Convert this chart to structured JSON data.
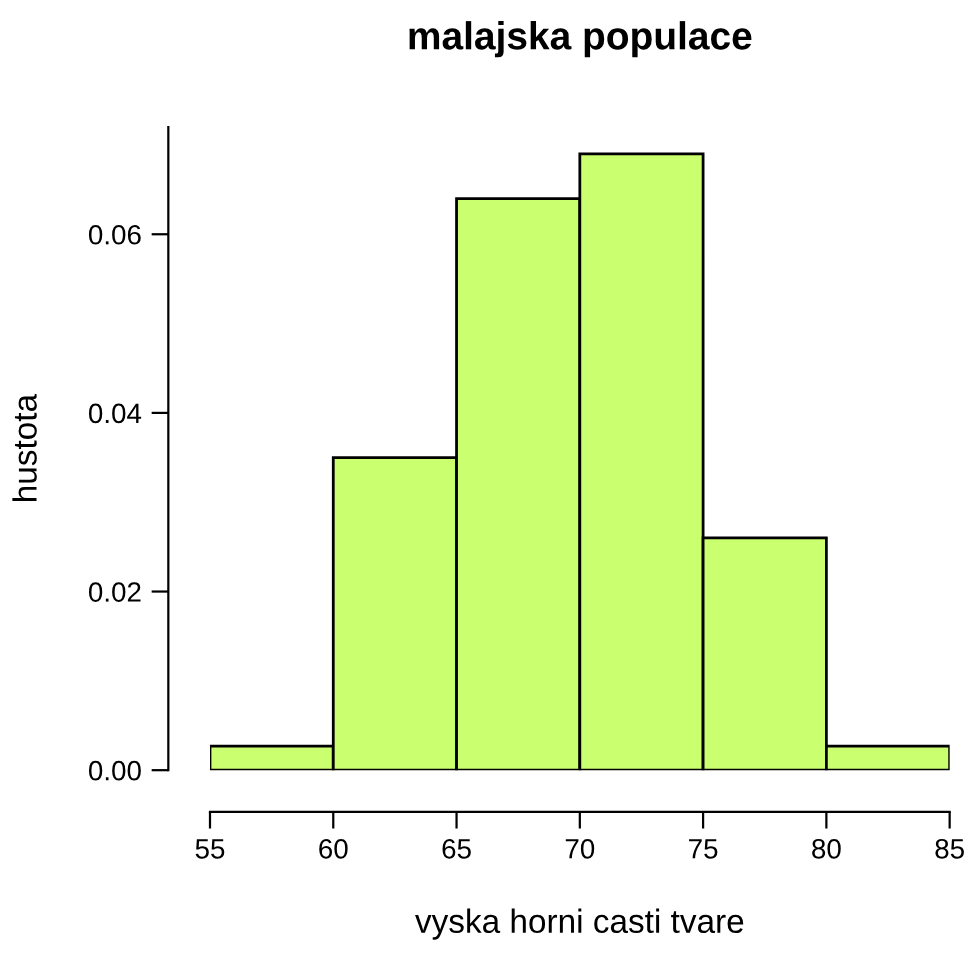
{
  "chart_data": {
    "type": "histogram",
    "title": "malajska populace",
    "xlabel": "vyska horni casti tvare",
    "ylabel": "hustota",
    "bins": [
      55,
      60,
      65,
      70,
      75,
      80,
      85
    ],
    "values": [
      0.0027,
      0.035,
      0.064,
      0.069,
      0.026,
      0.0027
    ],
    "color": "#caff70",
    "xlim": [
      55,
      85
    ],
    "xticks": [
      55,
      60,
      65,
      70,
      75,
      80,
      85
    ],
    "ylim": [
      0,
      0.072
    ],
    "yticks": [
      {
        "value": 0,
        "label": "0.00"
      },
      {
        "value": 0.02,
        "label": "0.02"
      },
      {
        "value": 0.04,
        "label": "0.04"
      },
      {
        "value": 0.06,
        "label": "0.06"
      }
    ],
    "grid": false,
    "legend": false
  }
}
